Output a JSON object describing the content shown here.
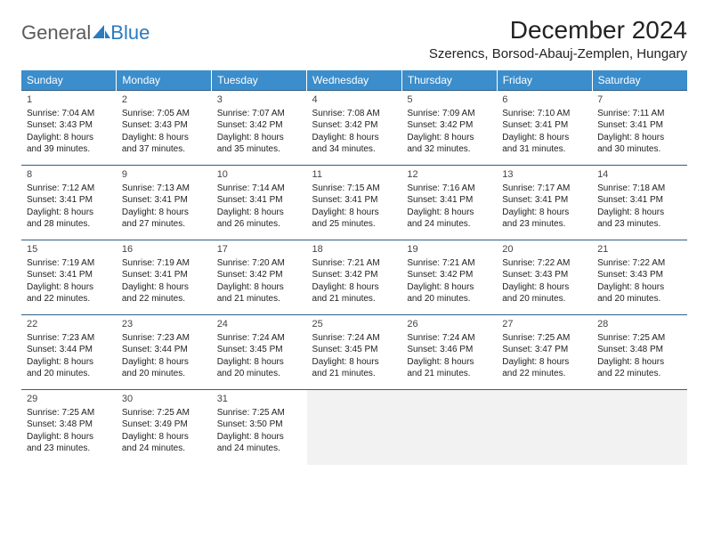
{
  "logo": {
    "part1": "General",
    "part2": "Blue"
  },
  "title": "December 2024",
  "location": "Szerencs, Borsod-Abauj-Zemplen, Hungary",
  "colors": {
    "header_bg": "#3b8dcb",
    "header_text": "#ffffff",
    "row_divider": "#305f87",
    "empty_bg": "#f2f2f2",
    "logo_gray": "#5b5b5b",
    "logo_blue": "#2a7bbf"
  },
  "day_headers": [
    "Sunday",
    "Monday",
    "Tuesday",
    "Wednesday",
    "Thursday",
    "Friday",
    "Saturday"
  ],
  "weeks": [
    [
      {
        "n": "1",
        "sr": "Sunrise: 7:04 AM",
        "ss": "Sunset: 3:43 PM",
        "d1": "Daylight: 8 hours",
        "d2": "and 39 minutes."
      },
      {
        "n": "2",
        "sr": "Sunrise: 7:05 AM",
        "ss": "Sunset: 3:43 PM",
        "d1": "Daylight: 8 hours",
        "d2": "and 37 minutes."
      },
      {
        "n": "3",
        "sr": "Sunrise: 7:07 AM",
        "ss": "Sunset: 3:42 PM",
        "d1": "Daylight: 8 hours",
        "d2": "and 35 minutes."
      },
      {
        "n": "4",
        "sr": "Sunrise: 7:08 AM",
        "ss": "Sunset: 3:42 PM",
        "d1": "Daylight: 8 hours",
        "d2": "and 34 minutes."
      },
      {
        "n": "5",
        "sr": "Sunrise: 7:09 AM",
        "ss": "Sunset: 3:42 PM",
        "d1": "Daylight: 8 hours",
        "d2": "and 32 minutes."
      },
      {
        "n": "6",
        "sr": "Sunrise: 7:10 AM",
        "ss": "Sunset: 3:41 PM",
        "d1": "Daylight: 8 hours",
        "d2": "and 31 minutes."
      },
      {
        "n": "7",
        "sr": "Sunrise: 7:11 AM",
        "ss": "Sunset: 3:41 PM",
        "d1": "Daylight: 8 hours",
        "d2": "and 30 minutes."
      }
    ],
    [
      {
        "n": "8",
        "sr": "Sunrise: 7:12 AM",
        "ss": "Sunset: 3:41 PM",
        "d1": "Daylight: 8 hours",
        "d2": "and 28 minutes."
      },
      {
        "n": "9",
        "sr": "Sunrise: 7:13 AM",
        "ss": "Sunset: 3:41 PM",
        "d1": "Daylight: 8 hours",
        "d2": "and 27 minutes."
      },
      {
        "n": "10",
        "sr": "Sunrise: 7:14 AM",
        "ss": "Sunset: 3:41 PM",
        "d1": "Daylight: 8 hours",
        "d2": "and 26 minutes."
      },
      {
        "n": "11",
        "sr": "Sunrise: 7:15 AM",
        "ss": "Sunset: 3:41 PM",
        "d1": "Daylight: 8 hours",
        "d2": "and 25 minutes."
      },
      {
        "n": "12",
        "sr": "Sunrise: 7:16 AM",
        "ss": "Sunset: 3:41 PM",
        "d1": "Daylight: 8 hours",
        "d2": "and 24 minutes."
      },
      {
        "n": "13",
        "sr": "Sunrise: 7:17 AM",
        "ss": "Sunset: 3:41 PM",
        "d1": "Daylight: 8 hours",
        "d2": "and 23 minutes."
      },
      {
        "n": "14",
        "sr": "Sunrise: 7:18 AM",
        "ss": "Sunset: 3:41 PM",
        "d1": "Daylight: 8 hours",
        "d2": "and 23 minutes."
      }
    ],
    [
      {
        "n": "15",
        "sr": "Sunrise: 7:19 AM",
        "ss": "Sunset: 3:41 PM",
        "d1": "Daylight: 8 hours",
        "d2": "and 22 minutes."
      },
      {
        "n": "16",
        "sr": "Sunrise: 7:19 AM",
        "ss": "Sunset: 3:41 PM",
        "d1": "Daylight: 8 hours",
        "d2": "and 22 minutes."
      },
      {
        "n": "17",
        "sr": "Sunrise: 7:20 AM",
        "ss": "Sunset: 3:42 PM",
        "d1": "Daylight: 8 hours",
        "d2": "and 21 minutes."
      },
      {
        "n": "18",
        "sr": "Sunrise: 7:21 AM",
        "ss": "Sunset: 3:42 PM",
        "d1": "Daylight: 8 hours",
        "d2": "and 21 minutes."
      },
      {
        "n": "19",
        "sr": "Sunrise: 7:21 AM",
        "ss": "Sunset: 3:42 PM",
        "d1": "Daylight: 8 hours",
        "d2": "and 20 minutes."
      },
      {
        "n": "20",
        "sr": "Sunrise: 7:22 AM",
        "ss": "Sunset: 3:43 PM",
        "d1": "Daylight: 8 hours",
        "d2": "and 20 minutes."
      },
      {
        "n": "21",
        "sr": "Sunrise: 7:22 AM",
        "ss": "Sunset: 3:43 PM",
        "d1": "Daylight: 8 hours",
        "d2": "and 20 minutes."
      }
    ],
    [
      {
        "n": "22",
        "sr": "Sunrise: 7:23 AM",
        "ss": "Sunset: 3:44 PM",
        "d1": "Daylight: 8 hours",
        "d2": "and 20 minutes."
      },
      {
        "n": "23",
        "sr": "Sunrise: 7:23 AM",
        "ss": "Sunset: 3:44 PM",
        "d1": "Daylight: 8 hours",
        "d2": "and 20 minutes."
      },
      {
        "n": "24",
        "sr": "Sunrise: 7:24 AM",
        "ss": "Sunset: 3:45 PM",
        "d1": "Daylight: 8 hours",
        "d2": "and 20 minutes."
      },
      {
        "n": "25",
        "sr": "Sunrise: 7:24 AM",
        "ss": "Sunset: 3:45 PM",
        "d1": "Daylight: 8 hours",
        "d2": "and 21 minutes."
      },
      {
        "n": "26",
        "sr": "Sunrise: 7:24 AM",
        "ss": "Sunset: 3:46 PM",
        "d1": "Daylight: 8 hours",
        "d2": "and 21 minutes."
      },
      {
        "n": "27",
        "sr": "Sunrise: 7:25 AM",
        "ss": "Sunset: 3:47 PM",
        "d1": "Daylight: 8 hours",
        "d2": "and 22 minutes."
      },
      {
        "n": "28",
        "sr": "Sunrise: 7:25 AM",
        "ss": "Sunset: 3:48 PM",
        "d1": "Daylight: 8 hours",
        "d2": "and 22 minutes."
      }
    ],
    [
      {
        "n": "29",
        "sr": "Sunrise: 7:25 AM",
        "ss": "Sunset: 3:48 PM",
        "d1": "Daylight: 8 hours",
        "d2": "and 23 minutes."
      },
      {
        "n": "30",
        "sr": "Sunrise: 7:25 AM",
        "ss": "Sunset: 3:49 PM",
        "d1": "Daylight: 8 hours",
        "d2": "and 24 minutes."
      },
      {
        "n": "31",
        "sr": "Sunrise: 7:25 AM",
        "ss": "Sunset: 3:50 PM",
        "d1": "Daylight: 8 hours",
        "d2": "and 24 minutes."
      },
      null,
      null,
      null,
      null
    ]
  ]
}
